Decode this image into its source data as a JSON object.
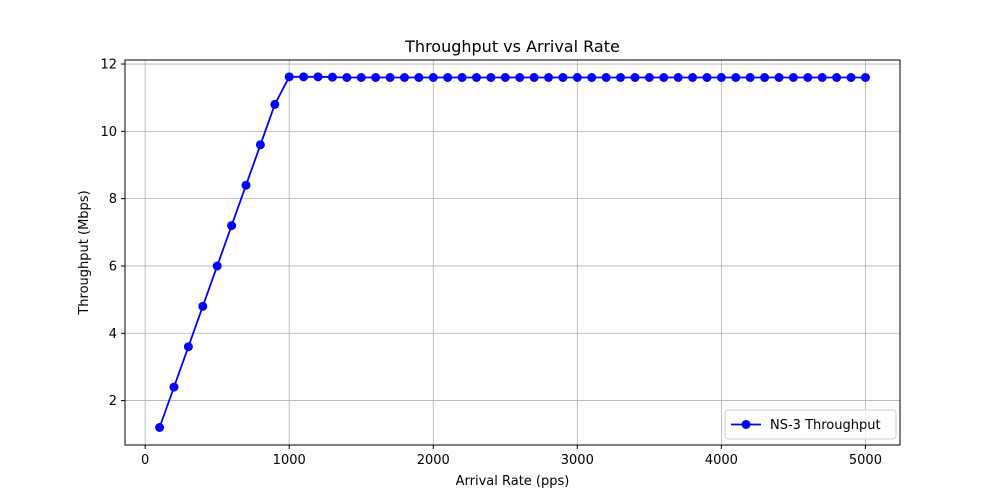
{
  "chart_data": {
    "type": "line",
    "title": "Throughput vs Arrival Rate",
    "xlabel": "Arrival Rate (pps)",
    "ylabel": "Throughput (Mbps)",
    "xlim": [
      -140,
      5240
    ],
    "ylim": [
      0.68,
      12.12
    ],
    "xticks": [
      0,
      1000,
      2000,
      3000,
      4000,
      5000
    ],
    "yticks": [
      2,
      4,
      6,
      8,
      10,
      12
    ],
    "grid": true,
    "legend_position": "lower-right",
    "series": [
      {
        "name": "NS-3 Throughput",
        "color": "#0000ff",
        "marker": "circle",
        "x": [
          100,
          200,
          300,
          400,
          500,
          600,
          700,
          800,
          900,
          1000,
          1100,
          1200,
          1300,
          1400,
          1500,
          1600,
          1700,
          1800,
          1900,
          2000,
          2100,
          2200,
          2300,
          2400,
          2500,
          2600,
          2700,
          2800,
          2900,
          3000,
          3100,
          3200,
          3300,
          3400,
          3500,
          3600,
          3700,
          3800,
          3900,
          4000,
          4100,
          4200,
          4300,
          4400,
          4500,
          4600,
          4700,
          4800,
          4900,
          5000
        ],
        "y": [
          1.2,
          2.4,
          3.6,
          4.8,
          6.0,
          7.2,
          8.4,
          9.6,
          10.8,
          11.62,
          11.62,
          11.62,
          11.61,
          11.6,
          11.6,
          11.6,
          11.6,
          11.6,
          11.6,
          11.6,
          11.6,
          11.6,
          11.6,
          11.6,
          11.6,
          11.6,
          11.6,
          11.6,
          11.6,
          11.6,
          11.6,
          11.6,
          11.6,
          11.6,
          11.6,
          11.6,
          11.6,
          11.6,
          11.6,
          11.6,
          11.6,
          11.6,
          11.6,
          11.6,
          11.6,
          11.6,
          11.6,
          11.6,
          11.6,
          11.6
        ]
      }
    ]
  }
}
